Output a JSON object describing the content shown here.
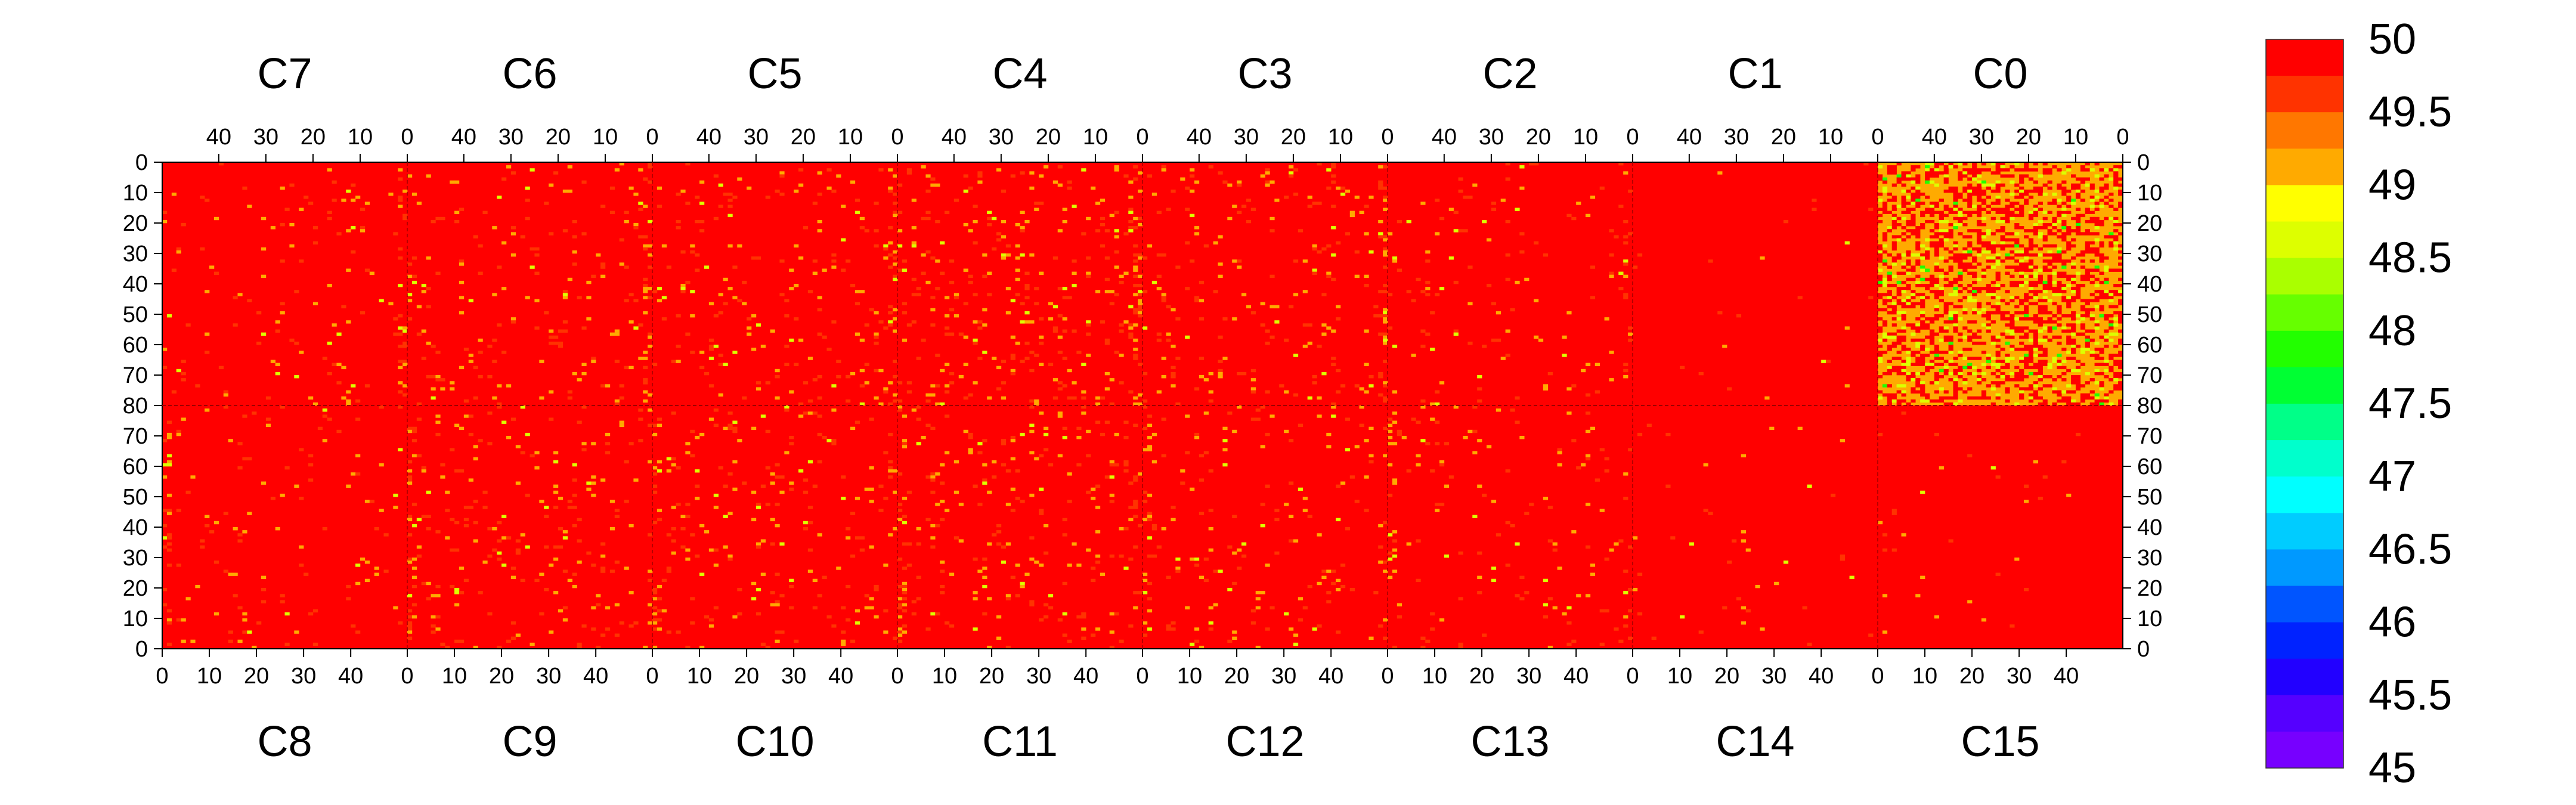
{
  "chart_data": {
    "type": "heatmap",
    "colorbar": {
      "min": 45,
      "max": 50,
      "ticks": [
        "50",
        "49.5",
        "49",
        "48.5",
        "48",
        "47.5",
        "47",
        "46.5",
        "46",
        "45.5",
        "45"
      ],
      "bands_top_to_bottom": [
        "#ff0000",
        "#ff3300",
        "#ff7700",
        "#ffaa00",
        "#ffff00",
        "#ddff00",
        "#aaff00",
        "#66ff00",
        "#22ff00",
        "#00ff33",
        "#00ff88",
        "#00ffcc",
        "#00ffff",
        "#00ccff",
        "#0099ff",
        "#0055ff",
        "#0022ff",
        "#2200ff",
        "#5500ff",
        "#7700ff"
      ]
    },
    "top_row": {
      "chips": [
        "C7",
        "C6",
        "C5",
        "C4",
        "C3",
        "C2",
        "C1",
        "C0"
      ],
      "x_ticks": [
        "40",
        "30",
        "20",
        "10",
        "0"
      ],
      "y_ticks": [
        "0",
        "10",
        "20",
        "30",
        "40",
        "50",
        "60",
        "70",
        "80"
      ]
    },
    "bottom_row": {
      "chips": [
        "C8",
        "C9",
        "C10",
        "C11",
        "C12",
        "C13",
        "C14",
        "C15"
      ],
      "x_ticks": [
        "0",
        "10",
        "20",
        "30",
        "40"
      ],
      "y_ticks": [
        "80",
        "70",
        "60",
        "50",
        "40",
        "30",
        "20",
        "10",
        "0"
      ]
    },
    "chip_columns": 52,
    "chip_rows": 80,
    "base_value": 50,
    "chip_noise": {
      "C7": 0.03,
      "C6": 0.05,
      "C5": 0.05,
      "C4": 0.07,
      "C3": 0.05,
      "C2": 0.03,
      "C1": 0.006,
      "C0": 0.55,
      "C8": 0.03,
      "C9": 0.05,
      "C10": 0.05,
      "C11": 0.06,
      "C12": 0.04,
      "C13": 0.03,
      "C14": 0.01,
      "C15": 0.008
    }
  }
}
